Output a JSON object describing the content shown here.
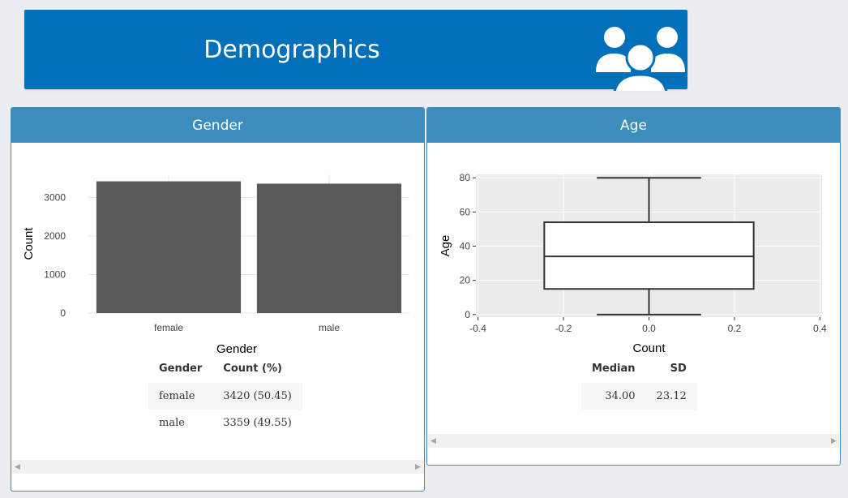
{
  "banner": {
    "title": "Demographics",
    "icon": "users-group-icon"
  },
  "gender_panel": {
    "title": "Gender",
    "table": {
      "headers": [
        "Gender",
        "Count (%)"
      ],
      "rows": [
        [
          "female",
          "3420 (50.45)"
        ],
        [
          "male",
          "3359 (49.55)"
        ]
      ]
    }
  },
  "age_panel": {
    "title": "Age",
    "table": {
      "headers": [
        "Median",
        "SD"
      ],
      "rows": [
        [
          "34.00",
          "23.12"
        ]
      ]
    }
  },
  "chart_data": [
    {
      "type": "bar",
      "categories": [
        "female",
        "male"
      ],
      "values": [
        3420,
        3359
      ],
      "xlabel": "Gender",
      "ylabel": "Count",
      "yticks": [
        0,
        1000,
        2000,
        3000
      ],
      "ylim": [
        0,
        3600
      ],
      "bar_color": "#595959"
    },
    {
      "type": "box",
      "x_center": 0,
      "min": 0,
      "q1": 15,
      "median": 34,
      "q3": 54,
      "max": 80,
      "xlabel": "Count",
      "ylabel": "Age",
      "xticks": [
        "-0.4",
        "-0.2",
        "0.0",
        "0.2",
        "0.4"
      ],
      "yticks": [
        0,
        20,
        40,
        60,
        80
      ],
      "xlim": [
        -0.4,
        0.4
      ],
      "ylim": [
        -1.5,
        82
      ],
      "box_halfwidth": 0.245,
      "whisker_cap_halfwidth": 0.122
    }
  ],
  "colors": {
    "banner": "#0070b9",
    "panel_header": "#3c8dbc",
    "plot_bg": "#ebebeb"
  }
}
